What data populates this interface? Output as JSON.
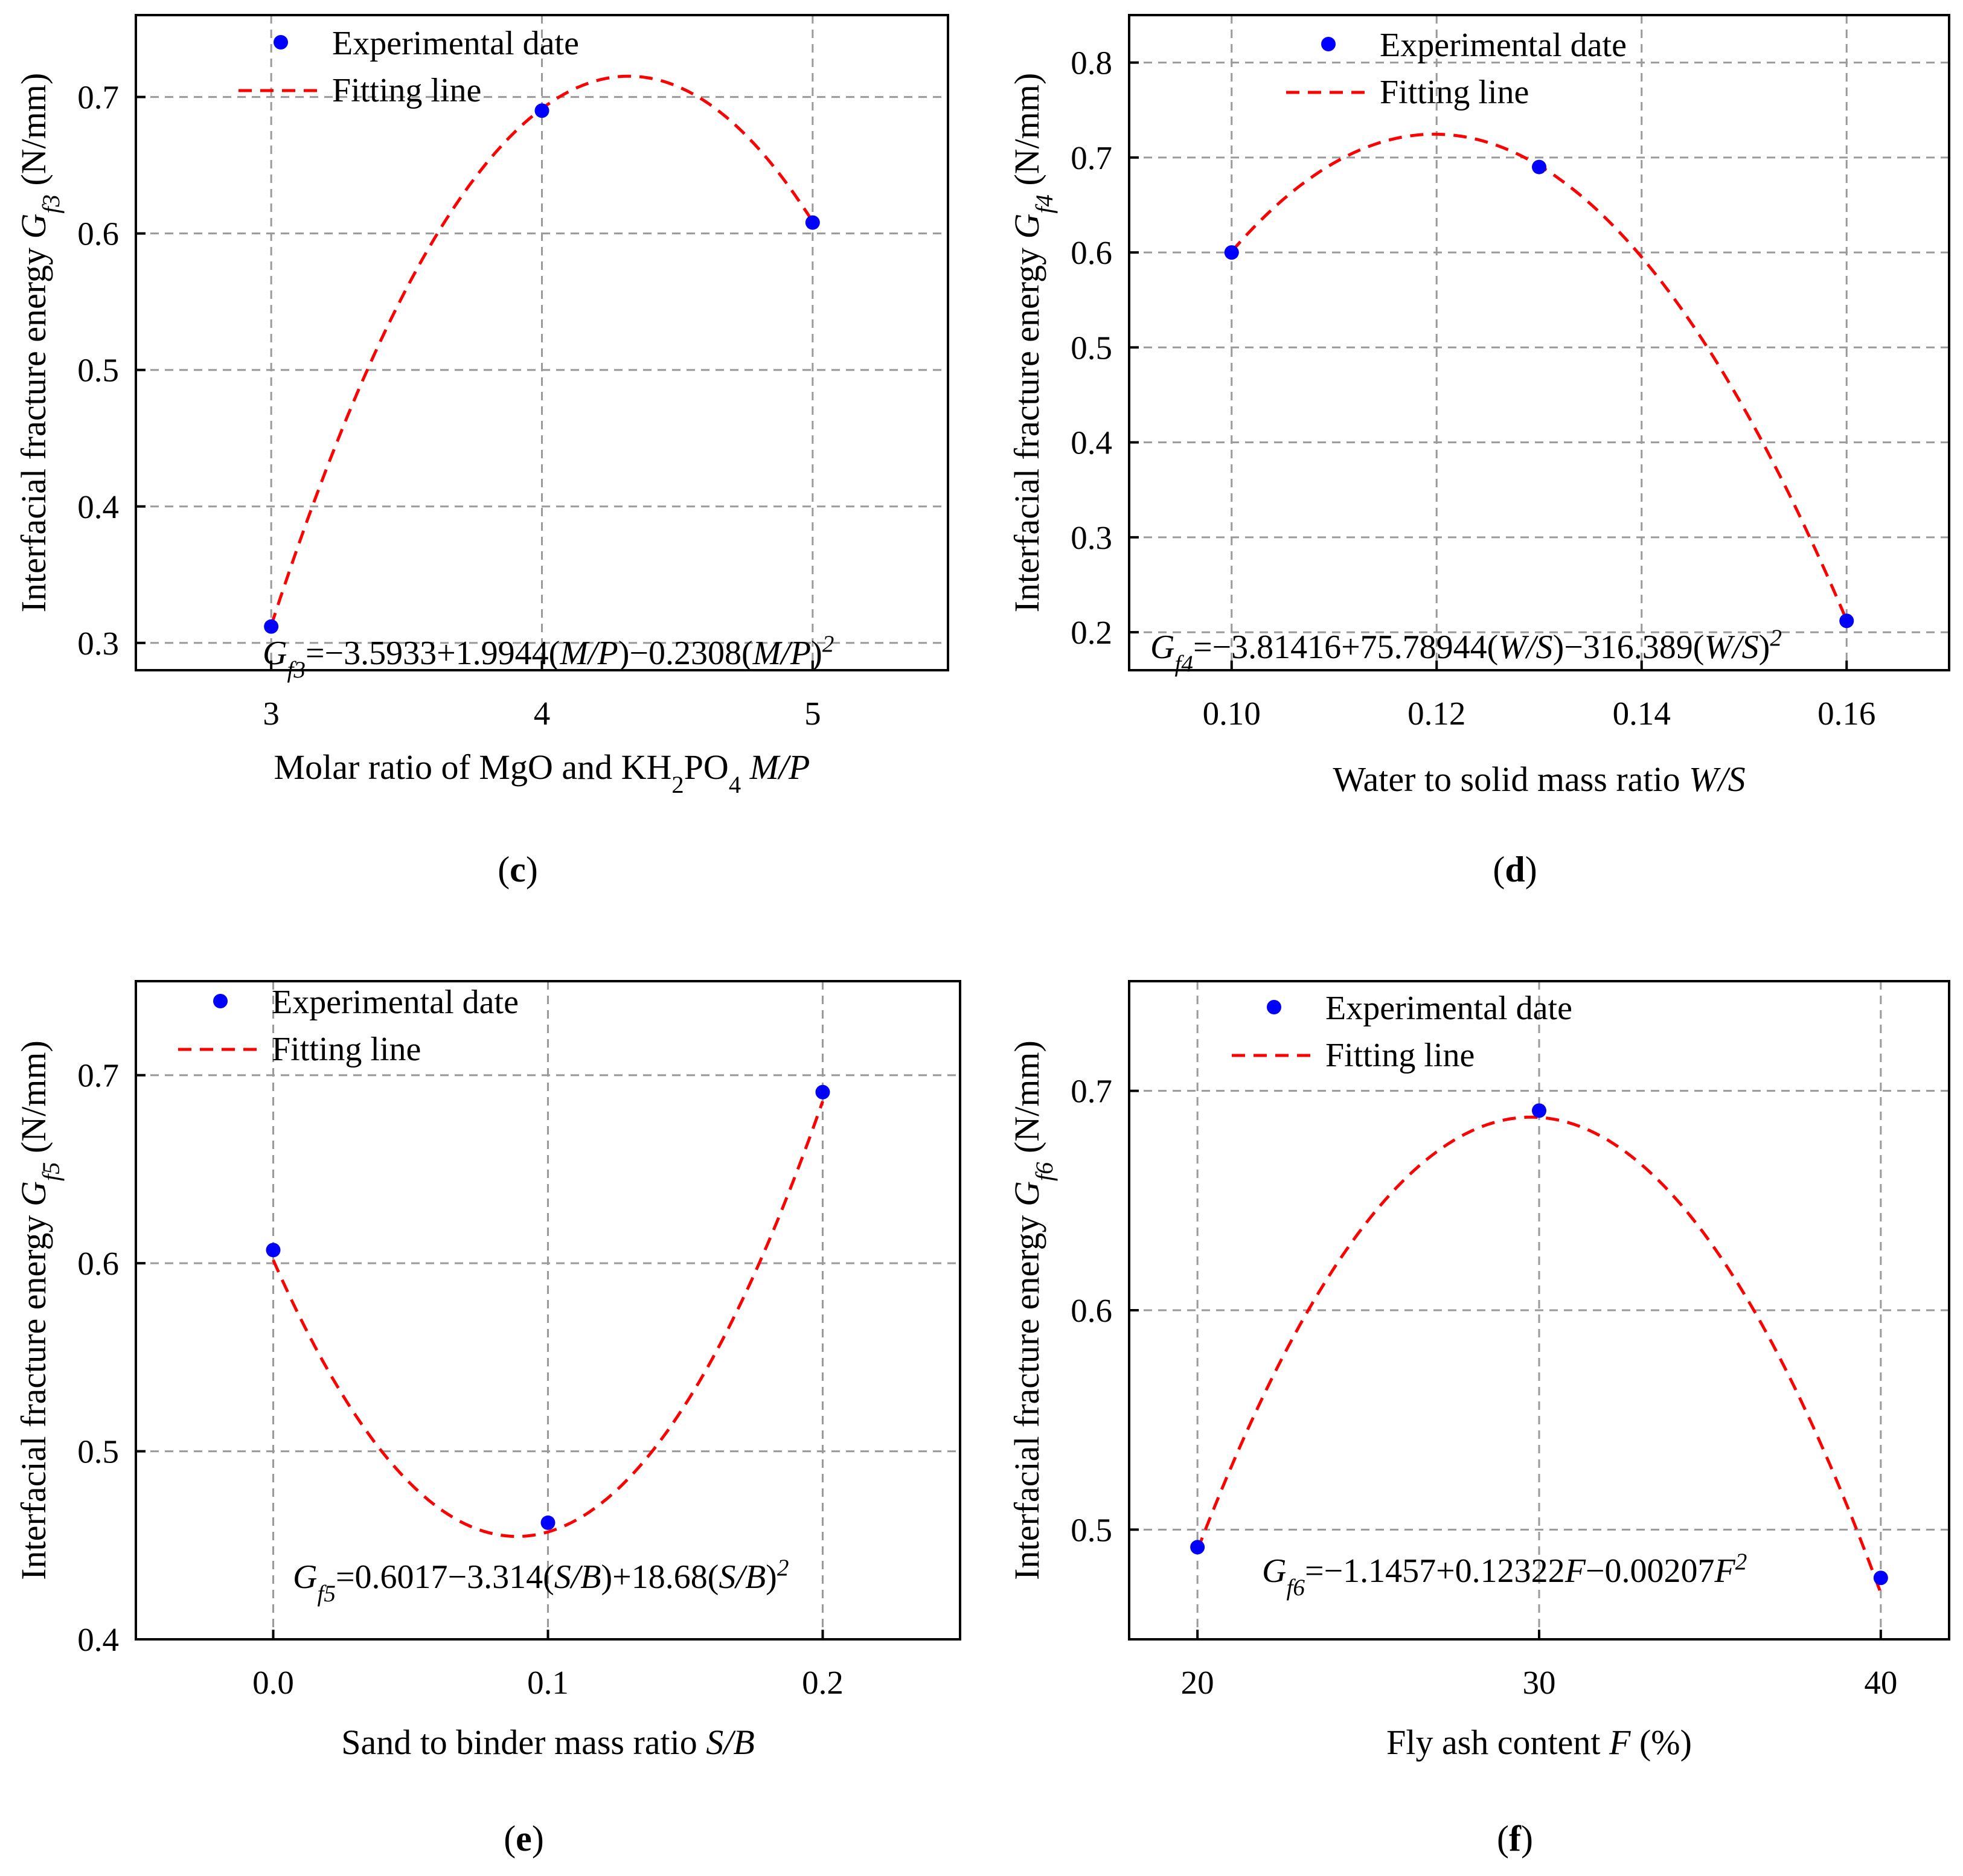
{
  "figure": {
    "legend": {
      "points_label": "Experimental date",
      "line_label": "Fitting line"
    },
    "colors": {
      "points": "#0000ff",
      "fit_line": "#ff0000",
      "grid": "#9a9a9a",
      "axes": "#000000"
    }
  },
  "chart_data": [
    {
      "id": "c",
      "type": "scatter",
      "panel_label": "c",
      "xlim": [
        2.5,
        5.5
      ],
      "ylim": [
        0.28,
        0.76
      ],
      "xticks": [
        3,
        4,
        5
      ],
      "xtick_labels": [
        "3",
        "4",
        "5"
      ],
      "yticks": [
        0.3,
        0.4,
        0.5,
        0.6,
        0.7
      ],
      "ytick_labels": [
        "0.3",
        "0.4",
        "0.5",
        "0.6",
        "0.7"
      ],
      "series": [
        {
          "name": "Experimental date",
          "x": [
            3,
            4,
            5
          ],
          "y": [
            0.312,
            0.69,
            0.608
          ]
        }
      ],
      "fit": {
        "name": "Fitting line",
        "coefficients": [
          -3.5933,
          1.9944,
          -0.2308
        ],
        "x_range": [
          3,
          5
        ]
      },
      "xlabel": {
        "prefix": "Molar ratio of MgO and KH",
        "sub1": "2",
        "mid": "PO",
        "sub2": "4",
        "italic": "M/P"
      },
      "ylabel": {
        "prefix": "Interfacial fracture energy ",
        "symbol": "G",
        "sub": "f3",
        "unit": " (N/mm)"
      },
      "equation": {
        "symbol": "G",
        "sub": "f3",
        "body": "=−3.5933+1.9944(",
        "v1": "M/P",
        "body2": ")−0.2308(",
        "v2": "M/P",
        "body3": ")",
        "sup": "2"
      },
      "legend_position": "top-left"
    },
    {
      "id": "d",
      "type": "scatter",
      "panel_label": "d",
      "xlim": [
        0.09,
        0.17
      ],
      "ylim": [
        0.16,
        0.85
      ],
      "xticks": [
        0.1,
        0.12,
        0.14,
        0.16
      ],
      "xtick_labels": [
        "0.10",
        "0.12",
        "0.14",
        "0.16"
      ],
      "yticks": [
        0.2,
        0.3,
        0.4,
        0.5,
        0.6,
        0.7,
        0.8
      ],
      "ytick_labels": [
        "0.2",
        "0.3",
        "0.4",
        "0.5",
        "0.6",
        "0.7",
        "0.8"
      ],
      "series": [
        {
          "name": "Experimental date",
          "x": [
            0.1,
            0.13,
            0.16
          ],
          "y": [
            0.6,
            0.69,
            0.212
          ]
        }
      ],
      "fit": {
        "name": "Fitting line",
        "coefficients": [
          -3.81416,
          75.78944,
          -316.389
        ],
        "x_range": [
          0.1,
          0.16
        ]
      },
      "xlabel": {
        "prefix": "Water to solid mass ratio ",
        "italic": "W/S"
      },
      "ylabel": {
        "prefix": "Interfacial fracture energy ",
        "symbol": "G",
        "sub": "f4",
        "unit": " (N/mm)"
      },
      "equation": {
        "symbol": "G",
        "sub": "f4",
        "body": "=−3.81416+75.78944(",
        "v1": "W/S",
        "body2": ")−316.389(",
        "v2": "W/S",
        "body3": ")",
        "sup": "2"
      },
      "legend_position": "top-left"
    },
    {
      "id": "e",
      "type": "scatter",
      "panel_label": "e",
      "xlim": [
        -0.05,
        0.25
      ],
      "ylim": [
        0.4,
        0.75
      ],
      "xticks": [
        0.0,
        0.1,
        0.2
      ],
      "xtick_labels": [
        "0.0",
        "0.1",
        "0.2"
      ],
      "yticks": [
        0.4,
        0.5,
        0.6,
        0.7
      ],
      "ytick_labels": [
        "0.4",
        "0.5",
        "0.6",
        "0.7"
      ],
      "series": [
        {
          "name": "Experimental date",
          "x": [
            0.0,
            0.1,
            0.2
          ],
          "y": [
            0.607,
            0.462,
            0.691
          ]
        }
      ],
      "fit": {
        "name": "Fitting line",
        "coefficients": [
          0.6017,
          -3.314,
          18.68
        ],
        "x_range": [
          0.0,
          0.2
        ]
      },
      "xlabel": {
        "prefix": "Sand to binder mass ratio ",
        "italic": "S/B"
      },
      "ylabel": {
        "prefix": "Interfacial fracture energy ",
        "symbol": "G",
        "sub": "f5",
        "unit": " (N/mm)"
      },
      "equation": {
        "symbol": "G",
        "sub": "f5",
        "body": "=0.6017−3.314(",
        "v1": "S/B",
        "body2": ")+18.68(",
        "v2": "S/B",
        "body3": ")",
        "sup": "2"
      },
      "legend_position": "top-left"
    },
    {
      "id": "f",
      "type": "scatter",
      "panel_label": "f",
      "xlim": [
        18,
        42
      ],
      "ylim": [
        0.45,
        0.75
      ],
      "xticks": [
        20,
        30,
        40
      ],
      "xtick_labels": [
        "20",
        "30",
        "40"
      ],
      "yticks": [
        0.5,
        0.6,
        0.7
      ],
      "ytick_labels": [
        "0.5",
        "0.6",
        "0.7"
      ],
      "series": [
        {
          "name": "Experimental date",
          "x": [
            20,
            30,
            40
          ],
          "y": [
            0.492,
            0.691,
            0.478
          ]
        }
      ],
      "fit": {
        "name": "Fitting line",
        "coefficients": [
          -1.1457,
          0.12322,
          -0.00207
        ],
        "x_range": [
          20,
          40
        ]
      },
      "xlabel": {
        "prefix": "Fly ash content ",
        "italic": "F",
        "suffix": " (%)"
      },
      "ylabel": {
        "prefix": "Interfacial fracture energy ",
        "symbol": "G",
        "sub": "f6",
        "unit": " (N/mm)"
      },
      "equation": {
        "symbol": "G",
        "sub": "f6",
        "body": "=−1.1457+0.12322",
        "v1": "F",
        "body2": "−0.00207",
        "v2": "F",
        "body3": "",
        "sup": "2"
      },
      "legend_position": "top-left"
    }
  ]
}
